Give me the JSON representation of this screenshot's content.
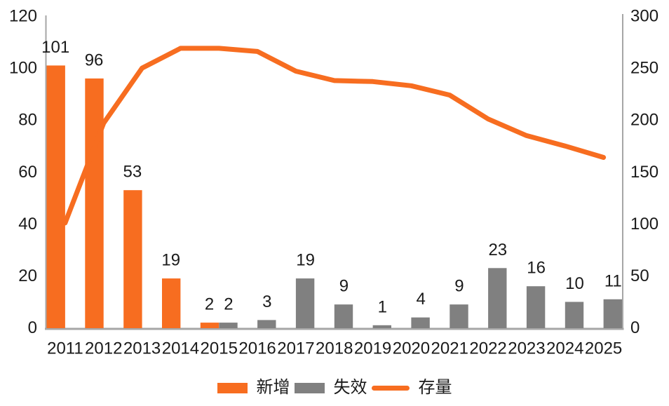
{
  "chart_data": {
    "type": "combo-bar-line",
    "title": "",
    "categories": [
      "2011",
      "2012",
      "2013",
      "2014",
      "2015",
      "2016",
      "2017",
      "2018",
      "2019",
      "2020",
      "2021",
      "2022",
      "2023",
      "2024",
      "2025"
    ],
    "series": [
      {
        "name": "新增",
        "type": "bar",
        "axis": "left",
        "color": "#F76D20",
        "values": [
          101,
          96,
          53,
          19,
          2,
          null,
          null,
          null,
          null,
          null,
          null,
          null,
          null,
          null,
          null
        ]
      },
      {
        "name": "失效",
        "type": "bar",
        "axis": "left",
        "color": "#808080",
        "values": [
          null,
          null,
          null,
          null,
          2,
          3,
          19,
          9,
          1,
          4,
          9,
          23,
          16,
          10,
          11
        ]
      },
      {
        "name": "存量",
        "type": "line",
        "axis": "right",
        "color": "#F76D20",
        "values": [
          101,
          197,
          250,
          269,
          269,
          266,
          247,
          238,
          237,
          233,
          224,
          201,
          185,
          175,
          164
        ]
      }
    ],
    "left_axis": {
      "min": 0,
      "max": 120,
      "step": 20,
      "tick_labels": [
        "0",
        "20",
        "40",
        "60",
        "80",
        "100",
        "120"
      ]
    },
    "right_axis": {
      "min": 0,
      "max": 300,
      "step": 50,
      "tick_labels": [
        "0",
        "50",
        "100",
        "150",
        "200",
        "250",
        "300"
      ]
    },
    "grid": false,
    "data_labels": true,
    "legend_position": "bottom"
  },
  "legend": {
    "items": [
      {
        "label": "新增",
        "swatch": "bar",
        "color": "#F76D20"
      },
      {
        "label": "失效",
        "swatch": "bar",
        "color": "#808080"
      },
      {
        "label": "存量",
        "swatch": "line",
        "color": "#F76D20"
      }
    ]
  },
  "colors": {
    "accent_orange": "#F76D20",
    "neutral_gray": "#808080",
    "axis_line": "#A6A6A6",
    "text": "#1A1A1A",
    "background": "#FFFFFF"
  }
}
